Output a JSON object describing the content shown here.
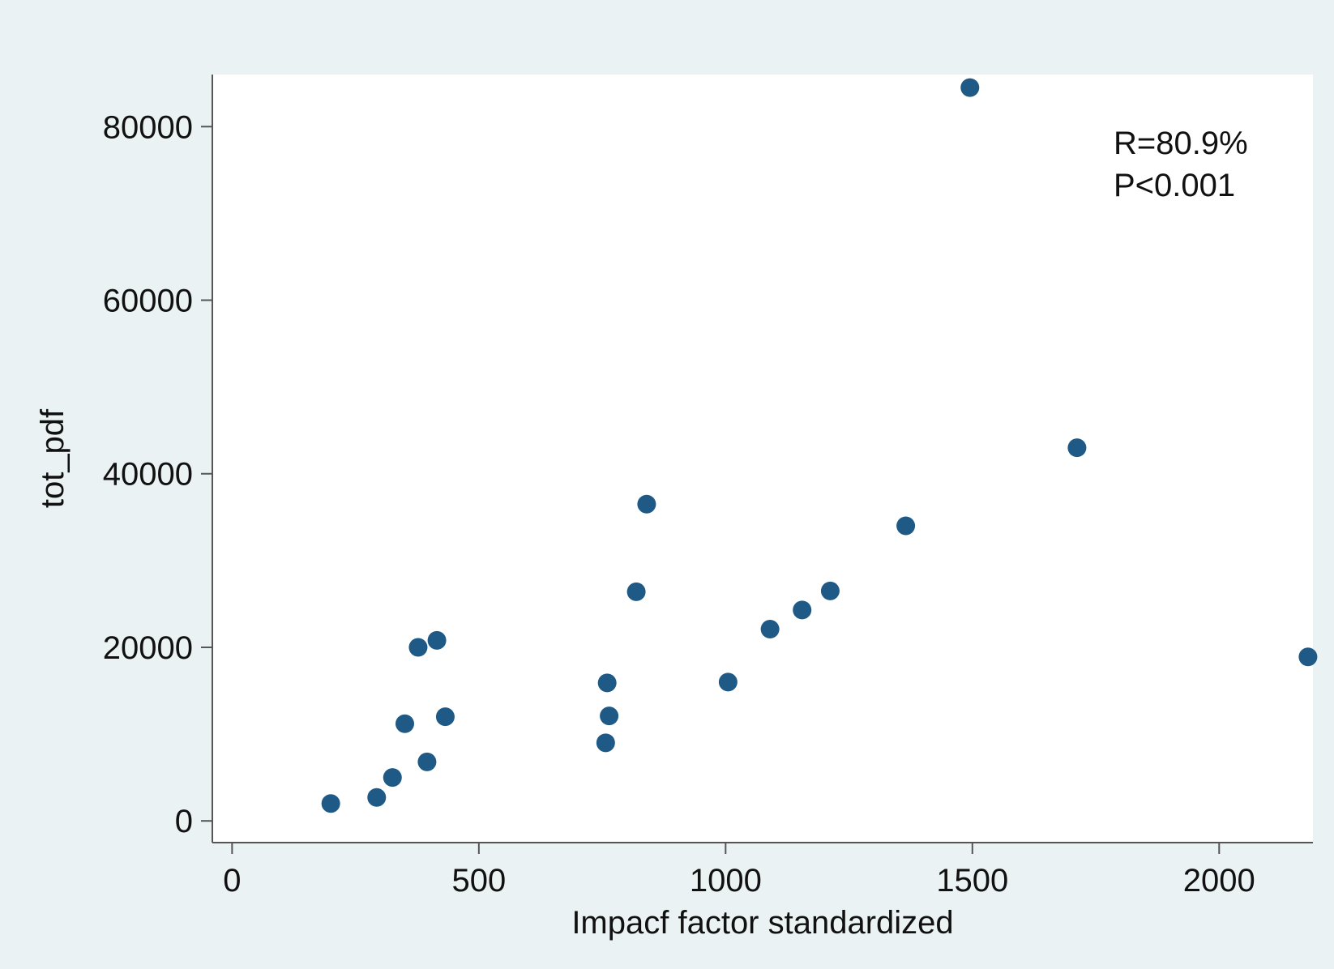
{
  "colors": {
    "outer_background": "#eaf2f3",
    "plot_background": "#ffffff",
    "marker": "#1f5a87",
    "axis": "#555555",
    "text": "#111111"
  },
  "chart_data": {
    "type": "scatter",
    "xlabel": "Impacf factor standardized",
    "ylabel": "tot_pdf",
    "xlim": [
      -40,
      2190
    ],
    "ylim": [
      -2500,
      86000
    ],
    "x_ticks": [
      0,
      500,
      1000,
      1500,
      2000
    ],
    "x_tick_labels": [
      "0",
      "500",
      "1000",
      "1500",
      "2000"
    ],
    "y_ticks": [
      0,
      20000,
      40000,
      60000,
      80000
    ],
    "y_tick_labels": [
      "0",
      "20000",
      "40000",
      "60000",
      "80000"
    ],
    "grid": false,
    "legend": false,
    "annotations": [
      "R=80.9%",
      "P<0.001"
    ],
    "points": [
      {
        "x": 200,
        "y": 2000
      },
      {
        "x": 293,
        "y": 2700
      },
      {
        "x": 325,
        "y": 5000
      },
      {
        "x": 350,
        "y": 11200
      },
      {
        "x": 377,
        "y": 20000
      },
      {
        "x": 395,
        "y": 6800
      },
      {
        "x": 415,
        "y": 20800
      },
      {
        "x": 432,
        "y": 12000
      },
      {
        "x": 757,
        "y": 9000
      },
      {
        "x": 760,
        "y": 15900
      },
      {
        "x": 764,
        "y": 12100
      },
      {
        "x": 819,
        "y": 26400
      },
      {
        "x": 840,
        "y": 36500
      },
      {
        "x": 1005,
        "y": 16000
      },
      {
        "x": 1090,
        "y": 22100
      },
      {
        "x": 1155,
        "y": 24300
      },
      {
        "x": 1212,
        "y": 26500
      },
      {
        "x": 1365,
        "y": 34000
      },
      {
        "x": 1495,
        "y": 84500
      },
      {
        "x": 1712,
        "y": 43000
      },
      {
        "x": 2180,
        "y": 18900
      }
    ]
  }
}
